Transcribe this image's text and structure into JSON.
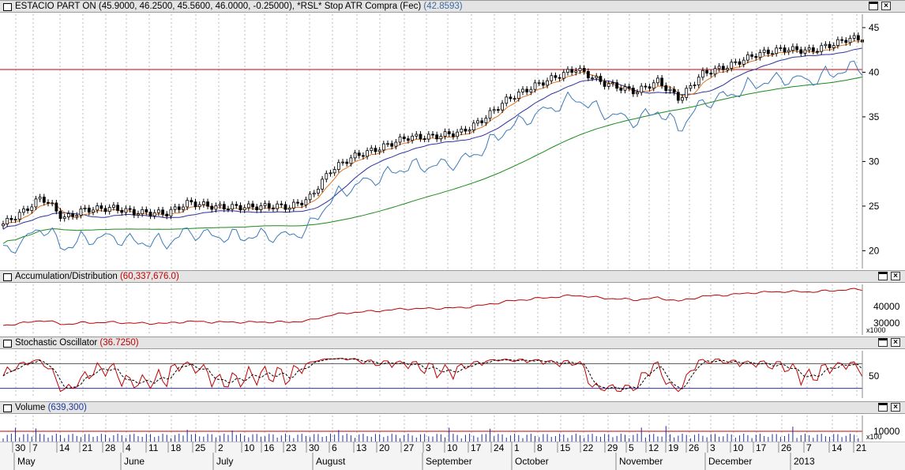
{
  "price_panel": {
    "title": "ESTACIO PART ON",
    "ohlc": "(45.9000, 46.2500, 45.5600, 46.0000, -0.25000)",
    "rsl_label": ", *RSL* Stop ATR Compra (Fec)",
    "rsl_value": "(42.8593)",
    "y_ticks": [
      "45",
      "40",
      "35",
      "30",
      "25",
      "20"
    ],
    "resistance_level": 40.3,
    "colors": {
      "resistance": "#cc0000",
      "ma_short": "#e07020",
      "ma_mid": "#3030a0",
      "ma_long": "#1a8a1a",
      "stop": "#3a7ab8"
    }
  },
  "ad_panel": {
    "title": "Accumulation/Distribution",
    "value": "(60,337,676.0)",
    "y_ticks": [
      "40000",
      "30000"
    ],
    "multiplier": "x1000"
  },
  "stoch_panel": {
    "title": "Stochastic Oscillator",
    "value": "(36.7250)",
    "y_ticks": [
      "50"
    ]
  },
  "volume_panel": {
    "title": "Volume",
    "value": "(639,300)",
    "y_ticks": [
      "10000"
    ],
    "multiplier": "x100"
  },
  "x_axis": {
    "days": [
      "30",
      "7",
      "14",
      "21",
      "28",
      "4",
      "11",
      "18",
      "25",
      "2",
      "10",
      "16",
      "23",
      "30",
      "6",
      "13",
      "20",
      "27",
      "3",
      "10",
      "17",
      "24",
      "1",
      "8",
      "15",
      "22",
      "29",
      "5",
      "12",
      "19",
      "26",
      "3",
      "10",
      "17",
      "26",
      "7",
      "14",
      "21"
    ],
    "months": [
      "May",
      "June",
      "July",
      "August",
      "September",
      "October",
      "November",
      "December",
      "2013"
    ]
  },
  "chart_data": {
    "type": "candlestick",
    "title": "ESTACIO PART ON",
    "ylim": [
      18,
      46
    ],
    "last_ohlc": {
      "open": 45.9,
      "high": 46.25,
      "low": 45.56,
      "close": 46.0,
      "change": -0.25
    },
    "series": [
      {
        "name": "*RSL* Stop ATR Compra (Fec)",
        "last": 42.8593
      },
      {
        "name": "Accumulation/Distribution",
        "last": 60337676.0
      },
      {
        "name": "Stochastic Oscillator",
        "last": 36.725
      },
      {
        "name": "Volume",
        "last": 639300
      }
    ]
  }
}
